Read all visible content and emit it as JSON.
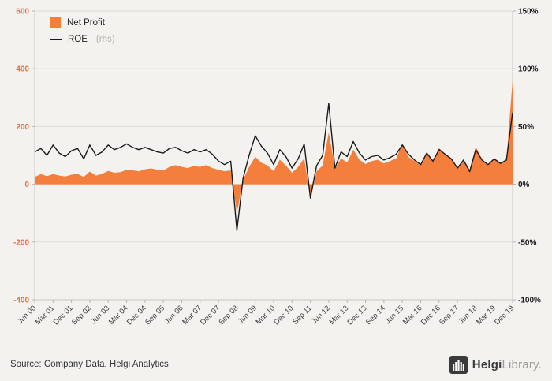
{
  "page": {
    "background": "#f3f2ef"
  },
  "legend": {
    "net_profit": "Net Profit",
    "roe": "ROE",
    "roe_suffix": "(rhs)"
  },
  "chart_data": {
    "type": "area",
    "title": "",
    "xlabel": "",
    "ylabel_left": "",
    "ylabel_right": "",
    "grid": true,
    "legend_position": "top-left",
    "x_tick_labels": [
      "Jun 00",
      "Mar 01",
      "Dec 01",
      "Sep 02",
      "Jun 03",
      "Mar 04",
      "Dec 04",
      "Sep 05",
      "Jun 06",
      "Mar 07",
      "Dec 07",
      "Sep 08",
      "Jun 09",
      "Mar 10",
      "Dec 10",
      "Sep 11",
      "Jun 12",
      "Mar 13",
      "Dec 13",
      "Sep 14",
      "Jun 15",
      "Mar 16",
      "Dec 16",
      "Sep 17",
      "Jun 18",
      "Mar 19",
      "Dec 19"
    ],
    "label_every_n_points": 3,
    "series": [
      {
        "name": "Net Profit",
        "type": "area",
        "axis": "left",
        "color": "#f47e3b",
        "values": [
          25,
          35,
          28,
          35,
          30,
          27,
          33,
          36,
          25,
          44,
          30,
          36,
          46,
          40,
          42,
          50,
          48,
          45,
          52,
          55,
          50,
          48,
          60,
          66,
          60,
          56,
          64,
          60,
          66,
          56,
          50,
          45,
          48,
          -100,
          15,
          60,
          95,
          75,
          65,
          45,
          85,
          65,
          40,
          60,
          90,
          -50,
          45,
          65,
          180,
          55,
          90,
          75,
          120,
          85,
          70,
          80,
          85,
          72,
          80,
          90,
          140,
          95,
          80,
          65,
          110,
          80,
          125,
          105,
          90,
          55,
          85,
          50,
          130,
          85,
          70,
          90,
          75,
          85,
          360
        ]
      },
      {
        "name": "ROE",
        "type": "line",
        "axis": "right",
        "unit": "%",
        "color": "#1a1a1a",
        "values": [
          28,
          31,
          25,
          34,
          27,
          24,
          29,
          31,
          22,
          34,
          25,
          28,
          34,
          30,
          32,
          35,
          32,
          30,
          32,
          30,
          28,
          27,
          31,
          32,
          29,
          27,
          30,
          28,
          30,
          26,
          20,
          17,
          20,
          -40,
          5,
          25,
          42,
          33,
          27,
          17,
          30,
          24,
          14,
          22,
          35,
          -12,
          16,
          25,
          70,
          14,
          28,
          24,
          37,
          27,
          21,
          24,
          25,
          21,
          23,
          26,
          34,
          26,
          21,
          17,
          27,
          20,
          30,
          26,
          22,
          14,
          21,
          11,
          30,
          21,
          17,
          22,
          18,
          21,
          62
        ]
      }
    ],
    "left_axis": {
      "min": -400,
      "max": 600,
      "ticks": [
        600,
        400,
        200,
        0,
        -200,
        -400
      ],
      "label_color": "#e8703a"
    },
    "right_axis": {
      "min": -100,
      "max": 150,
      "tick_labels": [
        "150%",
        "100%",
        "50%",
        "0%",
        "-50%",
        "-100%"
      ],
      "label_color": "#1a1a1a"
    }
  },
  "footer": {
    "source": "Source: Company Data, Helgi Analytics",
    "brand_bold": "Helgi",
    "brand_light": "Library."
  }
}
